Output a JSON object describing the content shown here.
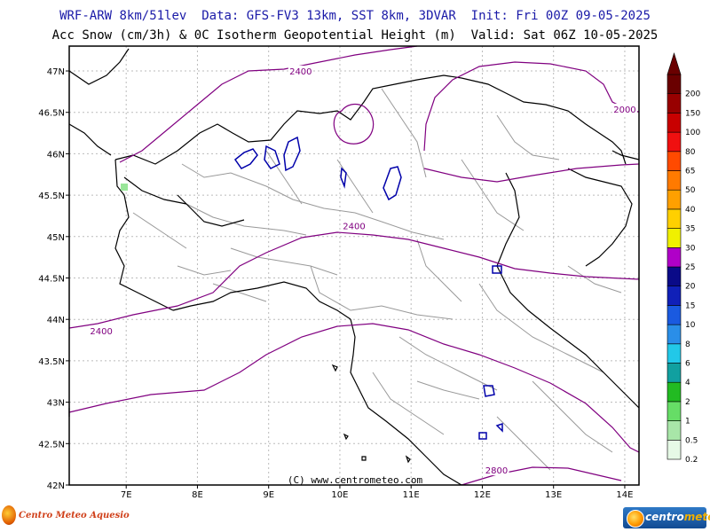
{
  "header": {
    "line1": "WRF-ARW 8km/51lev  Data: GFS-FV3 13km, SST 8km, 3DVAR  Init: Fri 00Z 09-05-2025",
    "line2": "Acc Snow (cm/3h) & 0C Isotherm Geopotential Height (m)  Valid: Sat 06Z 10-05-2025"
  },
  "map": {
    "lon_range": [
      6.2,
      14.2
    ],
    "lat_range": [
      42.0,
      47.3
    ],
    "lon_ticks": [
      {
        "v": 7,
        "label": "7E"
      },
      {
        "v": 8,
        "label": "8E"
      },
      {
        "v": 9,
        "label": "9E"
      },
      {
        "v": 10,
        "label": "10E"
      },
      {
        "v": 11,
        "label": "11E"
      },
      {
        "v": 12,
        "label": "12E"
      },
      {
        "v": 13,
        "label": "13E"
      },
      {
        "v": 14,
        "label": "14E"
      }
    ],
    "lat_ticks": [
      {
        "v": 42,
        "label": "42N"
      },
      {
        "v": 42.5,
        "label": "42.5N"
      },
      {
        "v": 43,
        "label": "43N"
      },
      {
        "v": 43.5,
        "label": "43.5N"
      },
      {
        "v": 44,
        "label": "44N"
      },
      {
        "v": 44.5,
        "label": "44.5N"
      },
      {
        "v": 45,
        "label": "45N"
      },
      {
        "v": 45.5,
        "label": "45.5N"
      },
      {
        "v": 46,
        "label": "46N"
      },
      {
        "v": 46.5,
        "label": "46.5N"
      },
      {
        "v": 47,
        "label": "47N"
      }
    ],
    "copyright": "(C) www.centrometeo.com",
    "contour_color": "#800080",
    "contour_labels": [
      {
        "text": "2400",
        "lon": 9.45,
        "lat": 46.99
      },
      {
        "text": "2400",
        "lon": 10.2,
        "lat": 45.12
      },
      {
        "text": "2400",
        "lon": 6.65,
        "lat": 43.85
      },
      {
        "text": "2800",
        "lon": 12.2,
        "lat": 42.17
      },
      {
        "text": "2000",
        "lon": 14.0,
        "lat": 46.53
      }
    ]
  },
  "colorbar": {
    "levels": [
      "0.2",
      "0.5",
      "1",
      "2",
      "4",
      "6",
      "8",
      "10",
      "15",
      "20",
      "25",
      "30",
      "35",
      "40",
      "50",
      "65",
      "80",
      "100",
      "150",
      "200"
    ],
    "colors": [
      "#e6f9e6",
      "#a8e6a8",
      "#66dd66",
      "#22bb22",
      "#11a0a0",
      "#22c8e8",
      "#2a8ee8",
      "#1a5ae0",
      "#1020b8",
      "#0a0a88",
      "#b000c8",
      "#f0f000",
      "#ffd000",
      "#ffa000",
      "#ff7a00",
      "#ff4a00",
      "#f01010",
      "#c80000",
      "#980000",
      "#6a0000"
    ]
  },
  "footer": {
    "left_logo": "Centro Meteo Aquesio",
    "right_logo_a": "centro",
    "right_logo_b": "meteo"
  }
}
